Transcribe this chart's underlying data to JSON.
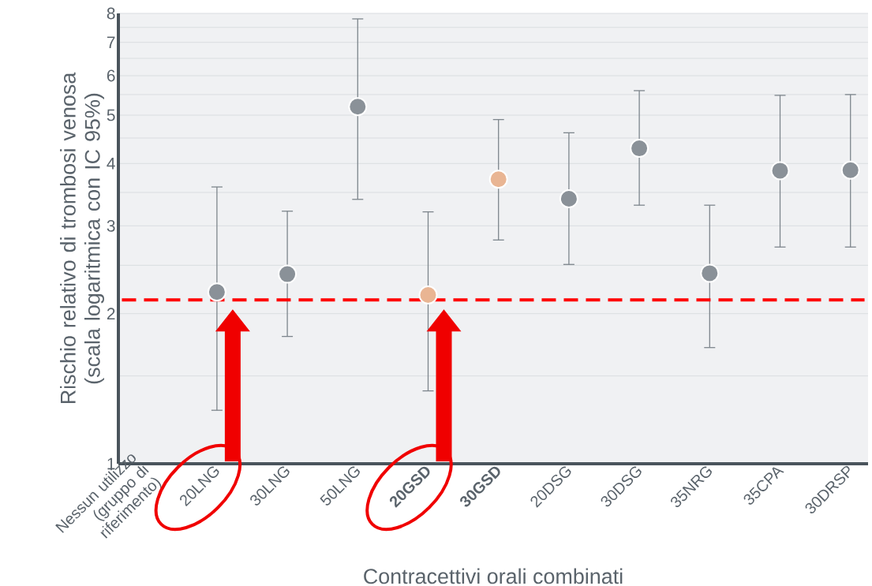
{
  "chart_data": {
    "type": "scatter",
    "xlabel": "Contracettivi orali combinati",
    "ylabel": "Rischio relativo di trombosi venosa (scala logaritmica con IC 95%)",
    "categories": [
      "Nessun utilizzo (gruppo di riferimento)",
      "20LNG",
      "30LNG",
      "50LNG",
      "**20GSD**",
      "**30GSD**",
      "20DSG",
      "30DSG",
      "35NRG",
      "35CPA",
      "30DRSP"
    ],
    "values": [
      null,
      2.21,
      2.4,
      5.2,
      2.18,
      3.72,
      3.4,
      4.29,
      2.41,
      3.87,
      3.88
    ],
    "errors": [
      null,
      [
        1.28,
        3.59
      ],
      [
        1.8,
        3.21
      ],
      [
        3.39,
        7.8
      ],
      [
        1.4,
        3.2
      ],
      [
        2.81,
        4.9
      ],
      [
        2.51,
        4.61
      ],
      [
        3.3,
        5.6
      ],
      [
        1.71,
        3.3
      ],
      [
        2.72,
        5.48
      ],
      [
        2.72,
        5.5
      ]
    ],
    "colors": [
      "#8a9198",
      "#8a9198",
      "#8a9198",
      "#8a9198",
      "#e9b593",
      "#e9b593",
      "#8a9198",
      "#8a9198",
      "#8a9198",
      "#8a9198",
      "#8a9198"
    ],
    "log": true,
    "ylim": [
      1,
      8
    ],
    "yticks": [
      1,
      {
        "value": 1.5,
        "label": null
      },
      2,
      {
        "value": 2.5,
        "label": null
      },
      3,
      {
        "value": 3.5,
        "label": null
      },
      4,
      {
        "value": 4.5,
        "label": null
      },
      5,
      {
        "value": 5.5,
        "label": null
      },
      6,
      {
        "value": 6.5,
        "label": null
      },
      7,
      {
        "value": 7.5,
        "label": null
      },
      8
    ],
    "grid": "y",
    "ref_lines": [
      {
        "axis": "y",
        "value": 2.13,
        "color": "#ff0000",
        "line_style": "dashed"
      }
    ]
  }
}
